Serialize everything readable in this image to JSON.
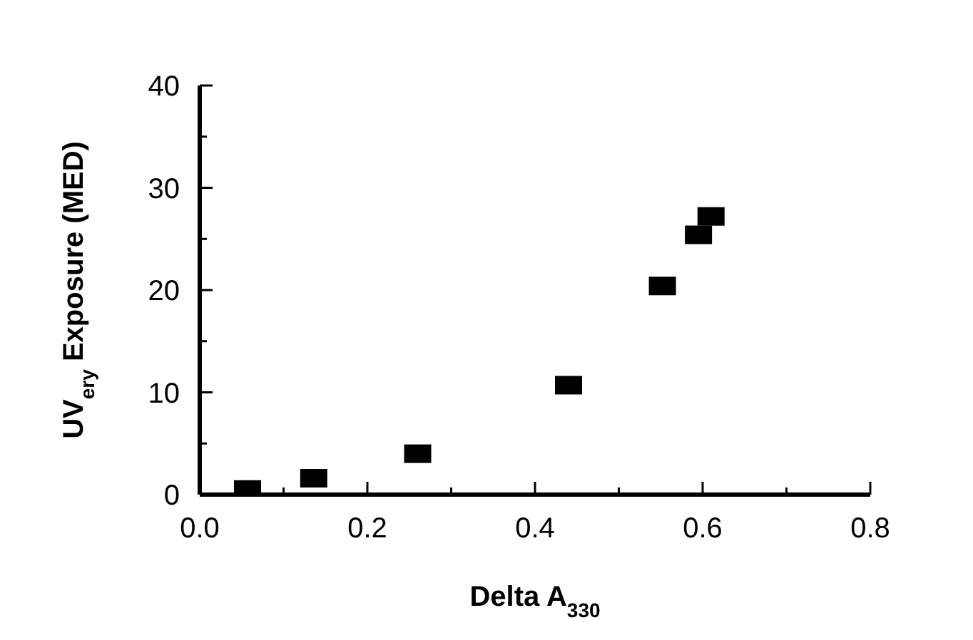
{
  "chart_data": {
    "type": "scatter",
    "xlabel": "Delta A$_{330}$",
    "ylabel": "UV$_{ery}$ Exposure (MED)",
    "x": [
      0.057,
      0.136,
      0.26,
      0.44,
      0.552,
      0.595,
      0.61
    ],
    "values": [
      0.5,
      1.6,
      4.0,
      10.7,
      20.4,
      25.4,
      27.2
    ],
    "color": "#000000",
    "marker": "square",
    "xlim": [
      0,
      0.8
    ],
    "xticks": [
      {
        "value": 0,
        "label": "0.0"
      },
      {
        "value": 0.1,
        "label": null
      },
      {
        "value": 0.2,
        "label": "0.2"
      },
      {
        "value": 0.3,
        "label": null
      },
      {
        "value": 0.4,
        "label": "0.4"
      },
      {
        "value": 0.5,
        "label": null
      },
      {
        "value": 0.6,
        "label": "0.6"
      },
      {
        "value": 0.7,
        "label": null
      },
      {
        "value": 0.8,
        "label": "0.8"
      }
    ],
    "ylim": [
      0,
      40
    ],
    "yticks": [
      0,
      {
        "value": 5,
        "label": null
      },
      10,
      {
        "value": 15,
        "label": null
      },
      20,
      {
        "value": 25,
        "label": null
      },
      30,
      {
        "value": 35,
        "label": null
      },
      40
    ],
    "grid": false,
    "legend": false
  }
}
